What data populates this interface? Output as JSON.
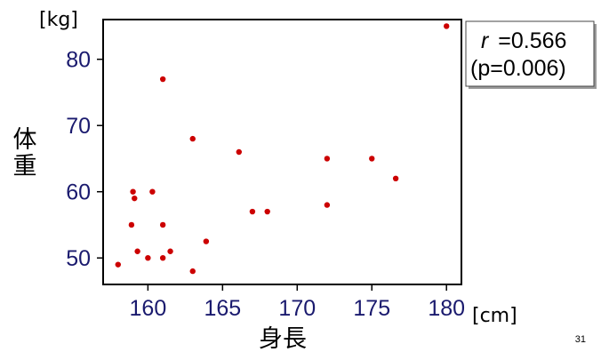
{
  "chart_data": {
    "type": "scatter",
    "x_unit": "[cm]",
    "y_unit": "[kg]",
    "xlabel": "身長",
    "ylabel": "体重",
    "xlim": [
      157,
      181
    ],
    "ylim": [
      46,
      86
    ],
    "xticks": [
      160,
      165,
      170,
      175,
      180
    ],
    "yticks": [
      50,
      60,
      70,
      80
    ],
    "grid": false,
    "point_color": "#cc0000",
    "points": [
      {
        "x": 158,
        "y": 49
      },
      {
        "x": 159,
        "y": 60
      },
      {
        "x": 159.1,
        "y": 59
      },
      {
        "x": 158.9,
        "y": 55
      },
      {
        "x": 159.3,
        "y": 51
      },
      {
        "x": 160,
        "y": 50
      },
      {
        "x": 160.3,
        "y": 60
      },
      {
        "x": 161,
        "y": 77
      },
      {
        "x": 161,
        "y": 55
      },
      {
        "x": 161,
        "y": 50
      },
      {
        "x": 161.5,
        "y": 51
      },
      {
        "x": 163,
        "y": 68
      },
      {
        "x": 163,
        "y": 48
      },
      {
        "x": 163.9,
        "y": 52.5
      },
      {
        "x": 166.1,
        "y": 66
      },
      {
        "x": 167,
        "y": 57
      },
      {
        "x": 168,
        "y": 57
      },
      {
        "x": 172,
        "y": 65
      },
      {
        "x": 172,
        "y": 58
      },
      {
        "x": 175,
        "y": 65
      },
      {
        "x": 176.6,
        "y": 62
      },
      {
        "x": 180,
        "y": 85
      }
    ],
    "annotation": {
      "r_symbol": "r",
      "r_value": "=0.566",
      "p_text": "(p=0.006)"
    }
  },
  "page_number": "31"
}
